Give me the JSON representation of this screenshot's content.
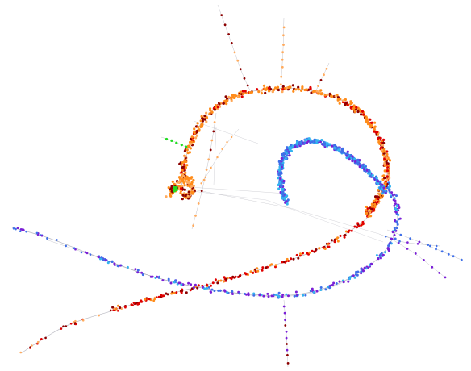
{
  "figure": {
    "kind": "trajectory-graph",
    "background": "#ffffff",
    "edge_color": "#7a7a8a",
    "palette": {
      "orange": "#ff8c1a",
      "light_orange": "#ffab5e",
      "dark_red": "#8b0000",
      "red": "#e00000",
      "purple": "#7a1fd6",
      "blue": "#3f6fe8",
      "light_blue": "#33b3ef",
      "green": "#22dd22"
    },
    "branches": [
      {
        "name": "upper-spiral-loop",
        "color": "orange"
      },
      {
        "name": "inner-hook",
        "color": "light_blue"
      },
      {
        "name": "lower-left-arm",
        "color": "red"
      },
      {
        "name": "lower-right-arm",
        "color": "purple"
      },
      {
        "name": "top-spikes",
        "color": "dark_red"
      },
      {
        "name": "green-spur",
        "color": "green"
      },
      {
        "name": "bottom-spike",
        "color": "purple"
      }
    ]
  }
}
